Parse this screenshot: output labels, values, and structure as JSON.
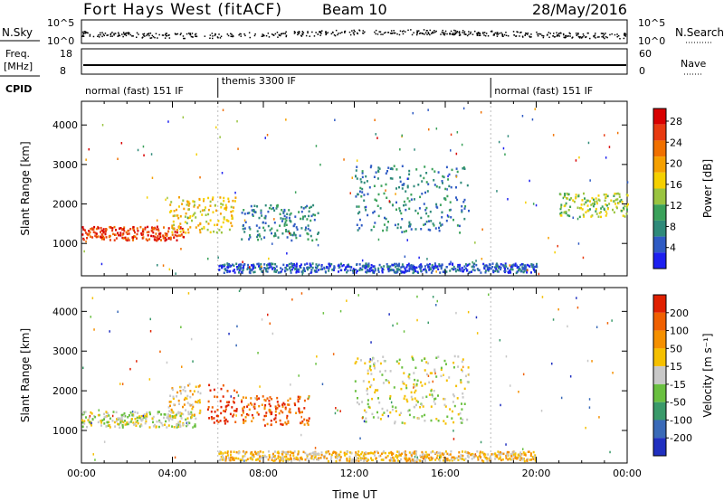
{
  "header": {
    "radar": "Fort Hays West (fitACF)",
    "beam": "Beam 10",
    "date": "28/May/2016"
  },
  "top_panel": {
    "left_label": "N.Sky",
    "right_label": "N.Search",
    "left_ticks": [
      "10^5",
      "10^0"
    ],
    "right_ticks": [
      "10^5",
      "10^0"
    ]
  },
  "freq_panel": {
    "left_label_1": "Freq.",
    "left_label_2": "[MHz]",
    "right_label": "Nave",
    "left_ticks": [
      "18",
      "8"
    ],
    "right_ticks": [
      "60",
      "0"
    ]
  },
  "cpid": {
    "label": "CPID",
    "segments": [
      {
        "name": "normal (fast) 151 IF",
        "start_h": 0,
        "end_h": 6
      },
      {
        "name": "themis 3300 IF",
        "start_h": 6,
        "end_h": 18
      },
      {
        "name": "normal (fast) 151 IF",
        "start_h": 18,
        "end_h": 24
      }
    ]
  },
  "chart_data": [
    {
      "type": "heatmap",
      "title": "",
      "ylabel": "Slant Range [km]",
      "xlabel": "",
      "xlim_hours": [
        0,
        24
      ],
      "ylim": [
        180,
        4600
      ],
      "yticks": [
        "1000",
        "2000",
        "3000",
        "4000"
      ],
      "colorbar": {
        "label": "Power [dB]",
        "ticks": [
          "4",
          "8",
          "12",
          "16",
          "20",
          "24",
          "28"
        ],
        "colors": [
          "#1d20f0",
          "#2f5bc4",
          "#2f8a7a",
          "#3aa15a",
          "#9ac440",
          "#f5d000",
          "#f5a000",
          "#f07000",
          "#e83a10",
          "#d80000"
        ]
      },
      "features": [
        {
          "start_h": 0.0,
          "end_h": 4.5,
          "range_from": 1100,
          "range_to": 1450,
          "level": 8
        },
        {
          "start_h": 3.8,
          "end_h": 6.8,
          "range_from": 1300,
          "range_to": 2200,
          "level": 5
        },
        {
          "start_h": 7.0,
          "end_h": 10.4,
          "range_from": 1100,
          "range_to": 2000,
          "level": 2
        },
        {
          "start_h": 12.0,
          "end_h": 17.0,
          "range_from": 1300,
          "range_to": 3000,
          "level": 2
        },
        {
          "start_h": 21.0,
          "end_h": 24.0,
          "range_from": 1700,
          "range_to": 2300,
          "level": 4
        },
        {
          "start_h": 6.0,
          "end_h": 20.0,
          "range_from": 280,
          "range_to": 520,
          "level": 1
        }
      ]
    },
    {
      "type": "heatmap",
      "title": "",
      "ylabel": "Slant Range [km]",
      "xlabel": "Time UT",
      "xlim_hours": [
        0,
        24
      ],
      "ylim": [
        180,
        4600
      ],
      "yticks": [
        "1000",
        "2000",
        "3000",
        "4000"
      ],
      "xticks": [
        "00:00",
        "04:00",
        "08:00",
        "12:00",
        "16:00",
        "20:00",
        "00:00"
      ],
      "colorbar": {
        "label": "Velocity [m s⁻¹]",
        "ticks": [
          "200",
          "100",
          "50",
          "15",
          "-15",
          "-50",
          "-100",
          "-200"
        ],
        "colors": [
          "#2030c0",
          "#3a6ab8",
          "#3a9a6a",
          "#6ac040",
          "#c8c8c8",
          "#f5c000",
          "#f59000",
          "#f06000",
          "#e02000"
        ]
      },
      "features": [
        {
          "start_h": 0.0,
          "end_h": 5.0,
          "range_from": 1100,
          "range_to": 1500,
          "level": 4
        },
        {
          "start_h": 3.8,
          "end_h": 5.2,
          "range_from": 1400,
          "range_to": 2200,
          "level": 5
        },
        {
          "start_h": 5.5,
          "end_h": 6.8,
          "range_from": 1200,
          "range_to": 2200,
          "level": 8
        },
        {
          "start_h": 7.0,
          "end_h": 10.0,
          "range_from": 1150,
          "range_to": 1900,
          "level": 7
        },
        {
          "start_h": 12.0,
          "end_h": 17.0,
          "range_from": 1200,
          "range_to": 2900,
          "level": 4
        },
        {
          "start_h": 6.0,
          "end_h": 20.0,
          "range_from": 250,
          "range_to": 500,
          "level": 5
        }
      ]
    }
  ]
}
